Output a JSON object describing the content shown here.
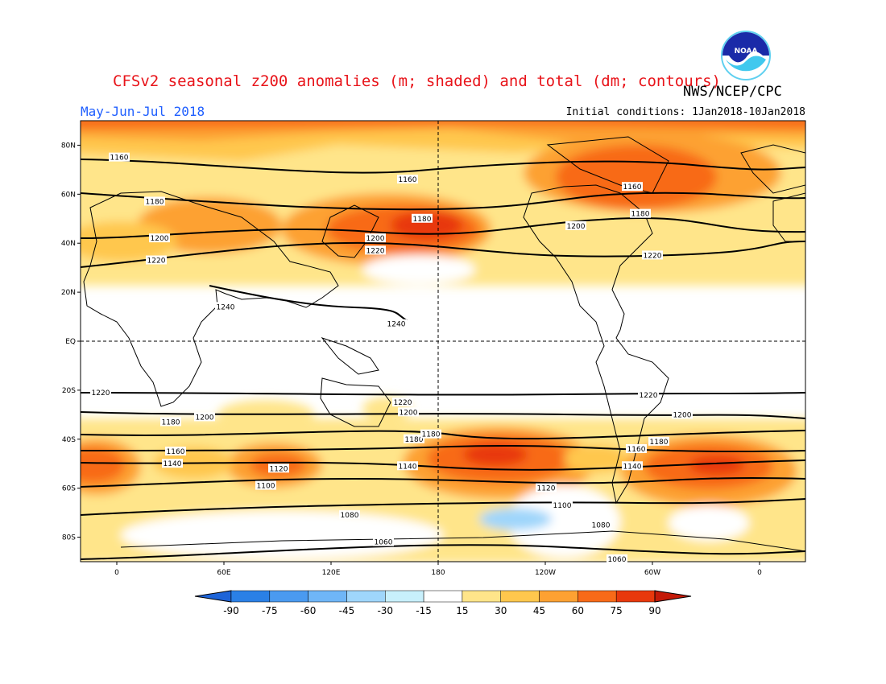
{
  "title": "CFSv2 seasonal z200 anomalies (m; shaded) and total (dm; contours)",
  "agency": "NWS/NCEP/CPC",
  "season": "May-Jun-Jul 2018",
  "initial_conditions": "Initial conditions: 1Jan2018-10Jan2018",
  "logo_text": "NOAA",
  "lat_labels": [
    "80N",
    "60N",
    "40N",
    "20N",
    "EQ",
    "20S",
    "40S",
    "60S",
    "80S"
  ],
  "lon_labels": [
    "0",
    "60E",
    "120E",
    "180",
    "120W",
    "60W",
    "0"
  ],
  "colorbar": {
    "labels": [
      "-90",
      "-75",
      "-60",
      "-45",
      "-30",
      "-15",
      "15",
      "30",
      "45",
      "60",
      "75",
      "90"
    ],
    "colors": [
      "#1e64d8",
      "#2a80e6",
      "#4a9af0",
      "#6fb6f7",
      "#9fd6fb",
      "#c8f0fc",
      "#ffffff",
      "#ffe58a",
      "#ffc74d",
      "#fda132",
      "#f86a18",
      "#e8380c",
      "#c41a08"
    ]
  },
  "contour_labels": [
    {
      "text": "1160",
      "lat": 75
    },
    {
      "text": "1160",
      "lat": 66
    },
    {
      "text": "1160",
      "lat": 63
    },
    {
      "text": "1180",
      "lat": 57
    },
    {
      "text": "1180",
      "lat": 50
    },
    {
      "text": "1180",
      "lat": 52
    },
    {
      "text": "1200",
      "lat": 42
    },
    {
      "text": "1200",
      "lat": 42
    },
    {
      "text": "1200",
      "lat": 47
    },
    {
      "text": "1220",
      "lat": 33
    },
    {
      "text": "1220",
      "lat": 37
    },
    {
      "text": "1220",
      "lat": 35
    },
    {
      "text": "1240",
      "lat": 14
    },
    {
      "text": "1240",
      "lat": 7
    },
    {
      "text": "1220",
      "lat": -21
    },
    {
      "text": "1220",
      "lat": -25
    },
    {
      "text": "1220",
      "lat": -22
    },
    {
      "text": "1200",
      "lat": -31
    },
    {
      "text": "1200",
      "lat": -29
    },
    {
      "text": "1200",
      "lat": -30
    },
    {
      "text": "1180",
      "lat": -33
    },
    {
      "text": "1180",
      "lat": -40
    },
    {
      "text": "1180",
      "lat": -38
    },
    {
      "text": "1180",
      "lat": -41
    },
    {
      "text": "1160",
      "lat": -45
    },
    {
      "text": "1160",
      "lat": -44
    },
    {
      "text": "1140",
      "lat": -50
    },
    {
      "text": "1140",
      "lat": -51
    },
    {
      "text": "1140",
      "lat": -51
    },
    {
      "text": "1120",
      "lat": -52
    },
    {
      "text": "1120",
      "lat": -60
    },
    {
      "text": "1100",
      "lat": -59
    },
    {
      "text": "1100",
      "lat": -67
    },
    {
      "text": "1080",
      "lat": -71
    },
    {
      "text": "1080",
      "lat": -75
    },
    {
      "text": "1060",
      "lat": -82
    },
    {
      "text": "1060",
      "lat": -89
    }
  ]
}
